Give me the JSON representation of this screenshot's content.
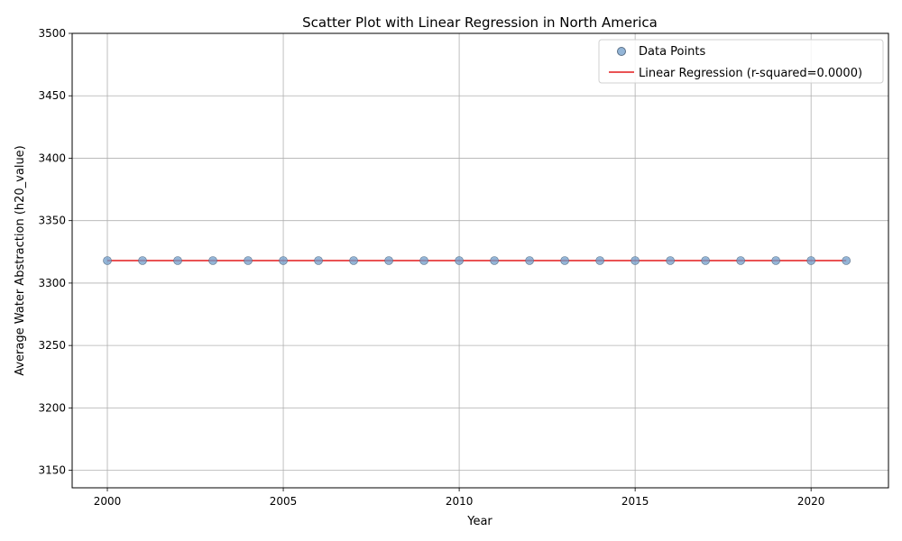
{
  "chart_data": {
    "type": "scatter",
    "title": "Scatter Plot with Linear Regression in North America",
    "xlabel": "Year",
    "ylabel": "Average Water Abstraction (h20_value)",
    "xlim": [
      1999,
      2022.2
    ],
    "ylim": [
      3136,
      3500
    ],
    "xticks": [
      2000,
      2005,
      2010,
      2015,
      2020
    ],
    "yticks": [
      3150,
      3200,
      3250,
      3300,
      3350,
      3400,
      3450,
      3500
    ],
    "grid": true,
    "legend_position": "top-right",
    "series": [
      {
        "name": "Data Points",
        "kind": "scatter",
        "color": "#6f9cc9",
        "x": [
          2000,
          2001,
          2002,
          2003,
          2004,
          2005,
          2006,
          2007,
          2008,
          2009,
          2010,
          2011,
          2012,
          2013,
          2014,
          2015,
          2016,
          2017,
          2018,
          2019,
          2020,
          2021
        ],
        "y": [
          3318,
          3318,
          3318,
          3318,
          3318,
          3318,
          3318,
          3318,
          3318,
          3318,
          3318,
          3318,
          3318,
          3318,
          3318,
          3318,
          3318,
          3318,
          3318,
          3318,
          3318,
          3318
        ]
      },
      {
        "name": "Linear Regression (r-squared=0.0000)",
        "kind": "line",
        "color": "#e31a1c",
        "x": [
          2000,
          2021
        ],
        "y": [
          3318,
          3318
        ]
      }
    ]
  }
}
